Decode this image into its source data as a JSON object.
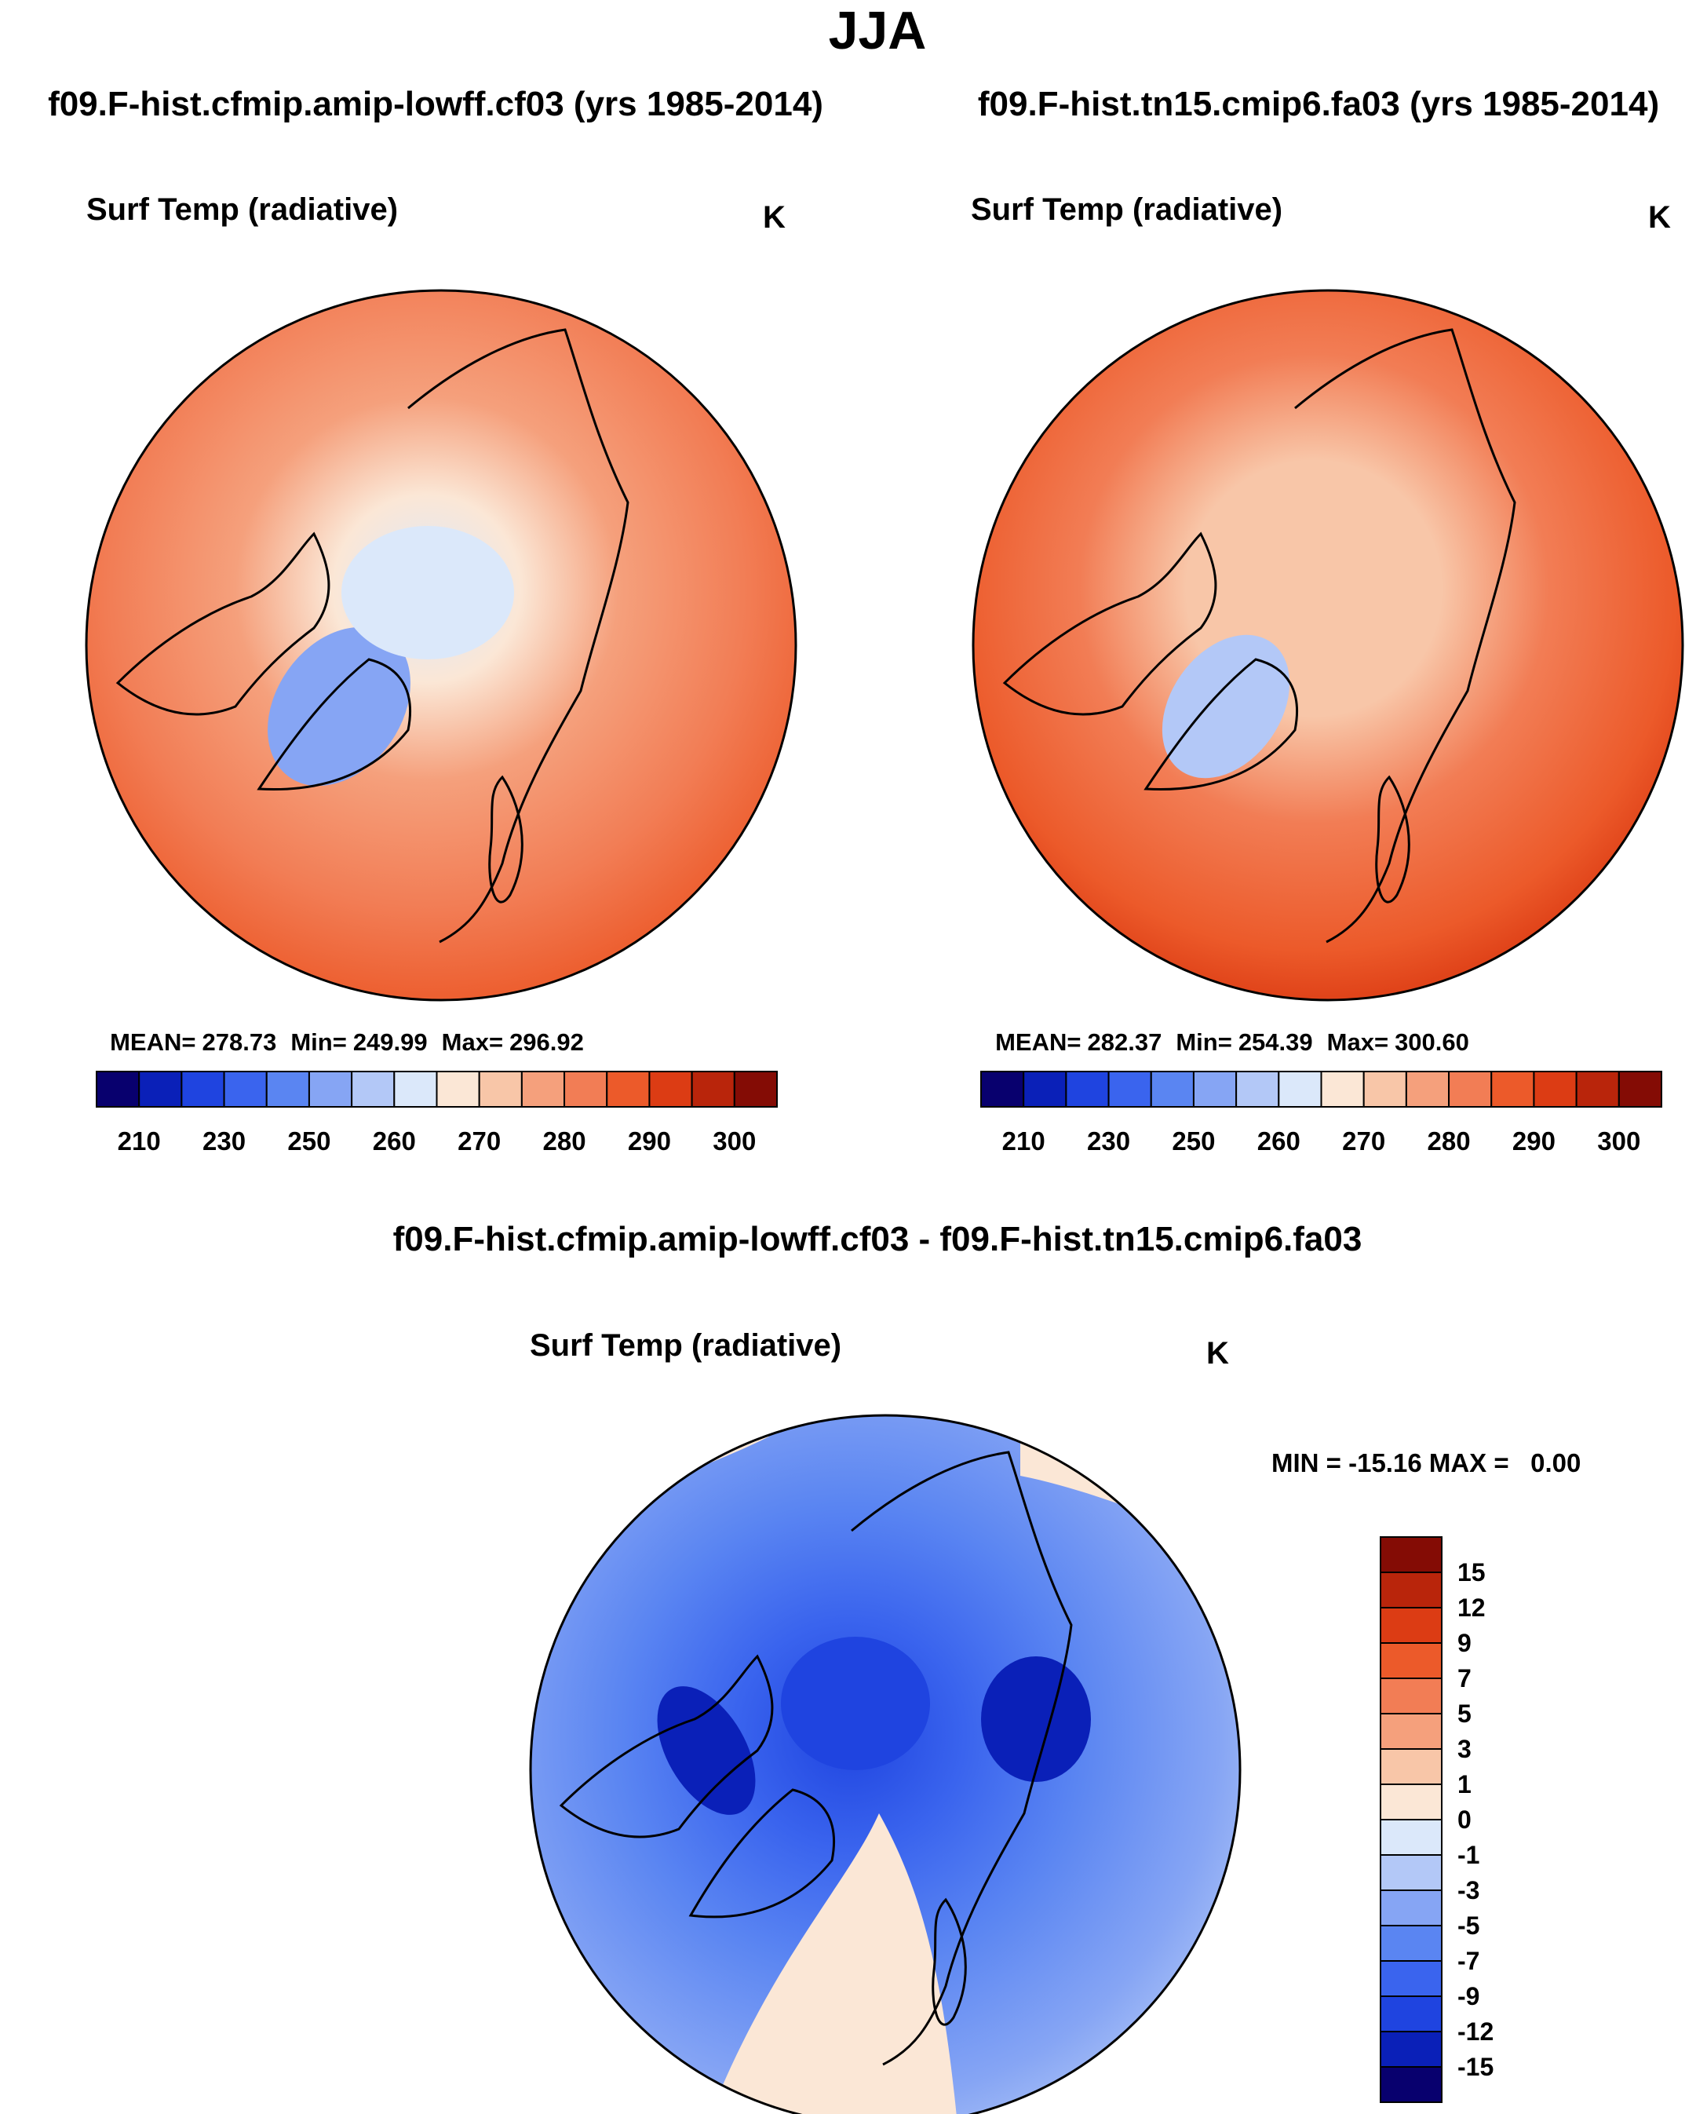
{
  "figure": {
    "title": "JJA",
    "left_header": "f09.F-hist.cfmip.amip-lowff.cf03 (yrs 1985-2014)",
    "right_header": "f09.F-hist.tn15.cmip6.fa03 (yrs 1985-2014)",
    "diff_header": "f09.F-hist.cfmip.amip-lowff.cf03 - f09.F-hist.tn15.cmip6.fa03"
  },
  "chart_data": [
    {
      "type": "heatmap",
      "projection": "north polar stereographic",
      "title": "Surf Temp (radiative)",
      "units": "K",
      "stats": {
        "mean_label": "MEAN=",
        "mean": "278.73",
        "min_label": "Min=",
        "min": "249.99",
        "max_label": "Max=",
        "max": "296.92"
      },
      "colorbar": {
        "orientation": "horizontal",
        "levels": [
          205,
          210,
          220,
          230,
          240,
          250,
          255,
          260,
          265,
          270,
          275,
          280,
          285,
          290,
          295,
          300
        ],
        "colors": [
          "#08006e",
          "#0a20b8",
          "#1f44e0",
          "#3a64ee",
          "#5a85f2",
          "#86a5f4",
          "#b3c8f7",
          "#dbe8fa",
          "#fbe7d6",
          "#f8c6a8",
          "#f5a07c",
          "#f27d55",
          "#ec5a2a",
          "#dc3c14",
          "#b9250b",
          "#840c05"
        ],
        "tick_labels": [
          "210",
          "230",
          "250",
          "260",
          "270",
          "280",
          "290",
          "300"
        ]
      }
    },
    {
      "type": "heatmap",
      "projection": "north polar stereographic",
      "title": "Surf Temp (radiative)",
      "units": "K",
      "stats": {
        "mean_label": "MEAN=",
        "mean": "282.37",
        "min_label": "Min=",
        "min": "254.39",
        "max_label": "Max=",
        "max": "300.60"
      },
      "colorbar": {
        "orientation": "horizontal",
        "levels": [
          205,
          210,
          220,
          230,
          240,
          250,
          255,
          260,
          265,
          270,
          275,
          280,
          285,
          290,
          295,
          300
        ],
        "colors": [
          "#08006e",
          "#0a20b8",
          "#1f44e0",
          "#3a64ee",
          "#5a85f2",
          "#86a5f4",
          "#b3c8f7",
          "#dbe8fa",
          "#fbe7d6",
          "#f8c6a8",
          "#f5a07c",
          "#f27d55",
          "#ec5a2a",
          "#dc3c14",
          "#b9250b",
          "#840c05"
        ],
        "tick_labels": [
          "210",
          "230",
          "250",
          "260",
          "270",
          "280",
          "290",
          "300"
        ]
      }
    },
    {
      "type": "heatmap",
      "projection": "north polar stereographic",
      "title": "Surf Temp (radiative)",
      "units": "K",
      "stats_text": "MIN = -15.16 MAX =   0.00",
      "colorbar": {
        "orientation": "vertical",
        "levels": [
          -15,
          -12,
          -9,
          -7,
          -5,
          -3,
          -1,
          0,
          1,
          3,
          5,
          7,
          9,
          12,
          15
        ],
        "colors": [
          "#840c05",
          "#b9250b",
          "#dc3c14",
          "#ec5a2a",
          "#f27d55",
          "#f5a07c",
          "#f8c6a8",
          "#fbe7d6",
          "#dbe8fa",
          "#b3c8f7",
          "#86a5f4",
          "#5a85f2",
          "#3a64ee",
          "#1f44e0",
          "#0a20b8",
          "#08006e"
        ],
        "tick_labels": [
          "15",
          "12",
          "9",
          "7",
          "5",
          "3",
          "1",
          "0",
          "-1",
          "-3",
          "-5",
          "-7",
          "-9",
          "-12",
          "-15"
        ]
      }
    }
  ]
}
